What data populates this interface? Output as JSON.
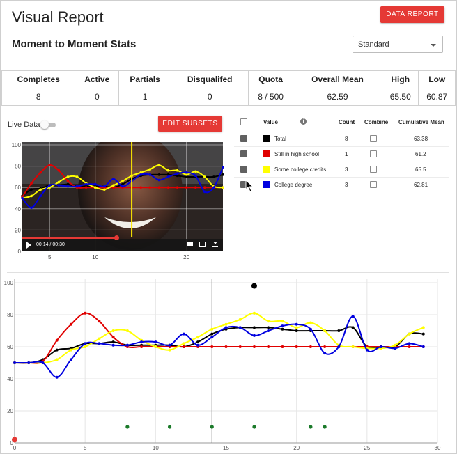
{
  "header": {
    "title": "Visual Report",
    "data_report_label": "DATA REPORT"
  },
  "section": {
    "subtitle": "Moment to Moment Stats",
    "select_value": "Standard"
  },
  "stats": {
    "headers": [
      "Completes",
      "Active",
      "Partials",
      "Disqualifed",
      "Quota",
      "Overall Mean",
      "High",
      "Low"
    ],
    "values": [
      "8",
      "0",
      "1",
      "0",
      "8 / 500",
      "62.59",
      "65.50",
      "60.87"
    ]
  },
  "controls": {
    "live_data_label": "Live Data",
    "edit_subsets_label": "EDIT SUBSETS"
  },
  "video": {
    "time": "00:14 / 00:30",
    "progress": 0.47
  },
  "legend": {
    "headers": {
      "value": "Value",
      "count": "Count",
      "combine": "Combine",
      "cumulative_mean": "Cumulative Mean"
    },
    "rows": [
      {
        "name": "Total",
        "color": "#000000",
        "count": "8",
        "mean": "63.38"
      },
      {
        "name": "Still in high school",
        "color": "#e00000",
        "count": "1",
        "mean": "61.2"
      },
      {
        "name": "Some college credits",
        "color": "#ffff00",
        "count": "3",
        "mean": "65.5"
      },
      {
        "name": "College degree",
        "color": "#0000e0",
        "count": "3",
        "mean": "62.81"
      }
    ]
  },
  "chart_data": {
    "type": "line",
    "xlim": [
      0,
      30
    ],
    "ylim": [
      0,
      100
    ],
    "xticks": [
      0,
      5,
      10,
      15,
      20,
      25,
      30
    ],
    "yticks": [
      0,
      20,
      40,
      60,
      80,
      100
    ],
    "mini_xticks": [
      5,
      10,
      20
    ],
    "mini_yticks": [
      0,
      20,
      40,
      60,
      80,
      100
    ],
    "cursor_x": 14,
    "series": [
      {
        "color": "#000000",
        "x": [
          0,
          1,
          2,
          3,
          4,
          5,
          6,
          7,
          8,
          9,
          10,
          11,
          12,
          13,
          14,
          15,
          16,
          17,
          18,
          19,
          20,
          21,
          22,
          23,
          24,
          25,
          26,
          27,
          28,
          29
        ],
        "y": [
          50,
          50,
          52,
          58,
          59,
          62,
          62,
          63,
          61,
          61,
          61,
          61,
          60,
          63,
          68,
          71,
          72,
          72,
          72,
          71,
          70,
          70,
          70,
          70,
          72,
          60,
          60,
          60,
          68,
          68
        ]
      },
      {
        "color": "#e00000",
        "x": [
          0,
          1,
          2,
          3,
          4,
          5,
          6,
          7,
          8,
          9,
          10,
          11,
          12,
          13,
          14,
          15,
          16,
          17,
          18,
          19,
          20,
          21,
          22,
          23,
          24,
          25,
          26,
          27,
          28,
          29
        ],
        "y": [
          50,
          50,
          51,
          64,
          74,
          81,
          76,
          66,
          60,
          60,
          60,
          60,
          60,
          60,
          60,
          60,
          60,
          60,
          60,
          60,
          60,
          60,
          60,
          60,
          60,
          60,
          60,
          60,
          60,
          60
        ]
      },
      {
        "color": "#ffff00",
        "x": [
          0,
          1,
          2,
          3,
          4,
          5,
          6,
          7,
          8,
          9,
          10,
          11,
          12,
          13,
          14,
          15,
          16,
          17,
          18,
          19,
          20,
          21,
          22,
          23,
          24,
          25,
          26,
          27,
          28,
          29
        ],
        "y": [
          50,
          50,
          50,
          52,
          58,
          60,
          65,
          70,
          70,
          64,
          60,
          58,
          62,
          66,
          71,
          74,
          77,
          81,
          76,
          76,
          72,
          75,
          70,
          61,
          60,
          59,
          59,
          61,
          68,
          72
        ]
      },
      {
        "color": "#0000e0",
        "x": [
          0,
          1,
          2,
          3,
          4,
          5,
          6,
          7,
          8,
          9,
          10,
          11,
          12,
          13,
          14,
          15,
          16,
          17,
          18,
          19,
          20,
          21,
          22,
          23,
          24,
          25,
          26,
          27,
          28,
          29
        ],
        "y": [
          50,
          50,
          50,
          41,
          52,
          62,
          62,
          61,
          61,
          63,
          63,
          61,
          68,
          61,
          66,
          72,
          72,
          67,
          70,
          73,
          74,
          71,
          56,
          60,
          79,
          58,
          60,
          59,
          62,
          60
        ]
      }
    ],
    "black_dot": {
      "x": 17,
      "y": 98
    },
    "red_dot": {
      "x": 0,
      "y": 2
    },
    "green_dots": {
      "x": [
        8,
        11,
        14,
        17,
        21,
        22
      ],
      "y": [
        10,
        10,
        10,
        10,
        10,
        10
      ]
    }
  }
}
